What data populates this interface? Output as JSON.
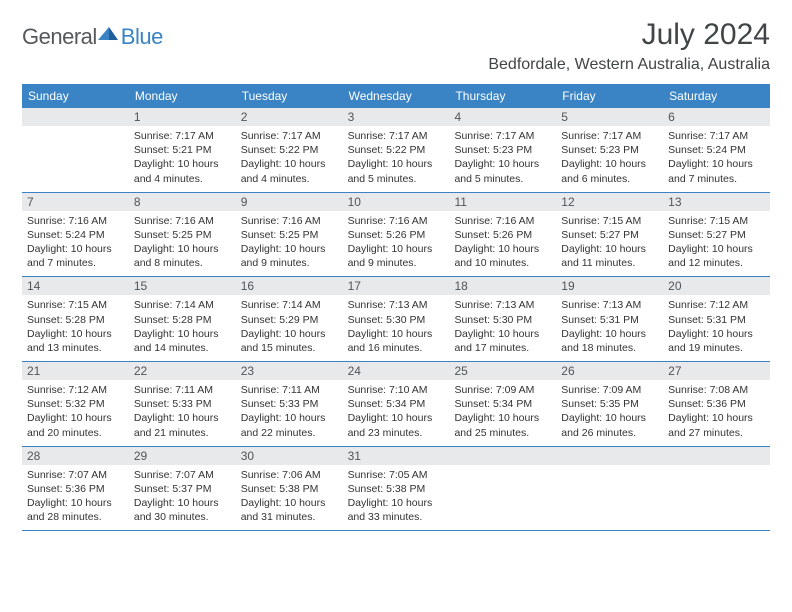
{
  "logo": {
    "general": "General",
    "blue": "Blue"
  },
  "title": "July 2024",
  "location": "Bedfordale, Western Australia, Australia",
  "colors": {
    "header_bg": "#3a83c5",
    "header_text": "#ffffff",
    "daynum_bg": "#e8e9ea",
    "daynum_text": "#505558",
    "body_text": "#333333",
    "rule": "#3a83c5",
    "logo_general": "#55595c",
    "logo_blue": "#3a83c5"
  },
  "day_headers": [
    "Sunday",
    "Monday",
    "Tuesday",
    "Wednesday",
    "Thursday",
    "Friday",
    "Saturday"
  ],
  "weeks": [
    [
      null,
      {
        "n": "1",
        "sunrise": "7:17 AM",
        "sunset": "5:21 PM",
        "daylight": "10 hours and 4 minutes."
      },
      {
        "n": "2",
        "sunrise": "7:17 AM",
        "sunset": "5:22 PM",
        "daylight": "10 hours and 4 minutes."
      },
      {
        "n": "3",
        "sunrise": "7:17 AM",
        "sunset": "5:22 PM",
        "daylight": "10 hours and 5 minutes."
      },
      {
        "n": "4",
        "sunrise": "7:17 AM",
        "sunset": "5:23 PM",
        "daylight": "10 hours and 5 minutes."
      },
      {
        "n": "5",
        "sunrise": "7:17 AM",
        "sunset": "5:23 PM",
        "daylight": "10 hours and 6 minutes."
      },
      {
        "n": "6",
        "sunrise": "7:17 AM",
        "sunset": "5:24 PM",
        "daylight": "10 hours and 7 minutes."
      }
    ],
    [
      {
        "n": "7",
        "sunrise": "7:16 AM",
        "sunset": "5:24 PM",
        "daylight": "10 hours and 7 minutes."
      },
      {
        "n": "8",
        "sunrise": "7:16 AM",
        "sunset": "5:25 PM",
        "daylight": "10 hours and 8 minutes."
      },
      {
        "n": "9",
        "sunrise": "7:16 AM",
        "sunset": "5:25 PM",
        "daylight": "10 hours and 9 minutes."
      },
      {
        "n": "10",
        "sunrise": "7:16 AM",
        "sunset": "5:26 PM",
        "daylight": "10 hours and 9 minutes."
      },
      {
        "n": "11",
        "sunrise": "7:16 AM",
        "sunset": "5:26 PM",
        "daylight": "10 hours and 10 minutes."
      },
      {
        "n": "12",
        "sunrise": "7:15 AM",
        "sunset": "5:27 PM",
        "daylight": "10 hours and 11 minutes."
      },
      {
        "n": "13",
        "sunrise": "7:15 AM",
        "sunset": "5:27 PM",
        "daylight": "10 hours and 12 minutes."
      }
    ],
    [
      {
        "n": "14",
        "sunrise": "7:15 AM",
        "sunset": "5:28 PM",
        "daylight": "10 hours and 13 minutes."
      },
      {
        "n": "15",
        "sunrise": "7:14 AM",
        "sunset": "5:28 PM",
        "daylight": "10 hours and 14 minutes."
      },
      {
        "n": "16",
        "sunrise": "7:14 AM",
        "sunset": "5:29 PM",
        "daylight": "10 hours and 15 minutes."
      },
      {
        "n": "17",
        "sunrise": "7:13 AM",
        "sunset": "5:30 PM",
        "daylight": "10 hours and 16 minutes."
      },
      {
        "n": "18",
        "sunrise": "7:13 AM",
        "sunset": "5:30 PM",
        "daylight": "10 hours and 17 minutes."
      },
      {
        "n": "19",
        "sunrise": "7:13 AM",
        "sunset": "5:31 PM",
        "daylight": "10 hours and 18 minutes."
      },
      {
        "n": "20",
        "sunrise": "7:12 AM",
        "sunset": "5:31 PM",
        "daylight": "10 hours and 19 minutes."
      }
    ],
    [
      {
        "n": "21",
        "sunrise": "7:12 AM",
        "sunset": "5:32 PM",
        "daylight": "10 hours and 20 minutes."
      },
      {
        "n": "22",
        "sunrise": "7:11 AM",
        "sunset": "5:33 PM",
        "daylight": "10 hours and 21 minutes."
      },
      {
        "n": "23",
        "sunrise": "7:11 AM",
        "sunset": "5:33 PM",
        "daylight": "10 hours and 22 minutes."
      },
      {
        "n": "24",
        "sunrise": "7:10 AM",
        "sunset": "5:34 PM",
        "daylight": "10 hours and 23 minutes."
      },
      {
        "n": "25",
        "sunrise": "7:09 AM",
        "sunset": "5:34 PM",
        "daylight": "10 hours and 25 minutes."
      },
      {
        "n": "26",
        "sunrise": "7:09 AM",
        "sunset": "5:35 PM",
        "daylight": "10 hours and 26 minutes."
      },
      {
        "n": "27",
        "sunrise": "7:08 AM",
        "sunset": "5:36 PM",
        "daylight": "10 hours and 27 minutes."
      }
    ],
    [
      {
        "n": "28",
        "sunrise": "7:07 AM",
        "sunset": "5:36 PM",
        "daylight": "10 hours and 28 minutes."
      },
      {
        "n": "29",
        "sunrise": "7:07 AM",
        "sunset": "5:37 PM",
        "daylight": "10 hours and 30 minutes."
      },
      {
        "n": "30",
        "sunrise": "7:06 AM",
        "sunset": "5:38 PM",
        "daylight": "10 hours and 31 minutes."
      },
      {
        "n": "31",
        "sunrise": "7:05 AM",
        "sunset": "5:38 PM",
        "daylight": "10 hours and 33 minutes."
      },
      null,
      null,
      null
    ]
  ],
  "labels": {
    "sunrise": "Sunrise:",
    "sunset": "Sunset:",
    "daylight": "Daylight:"
  }
}
